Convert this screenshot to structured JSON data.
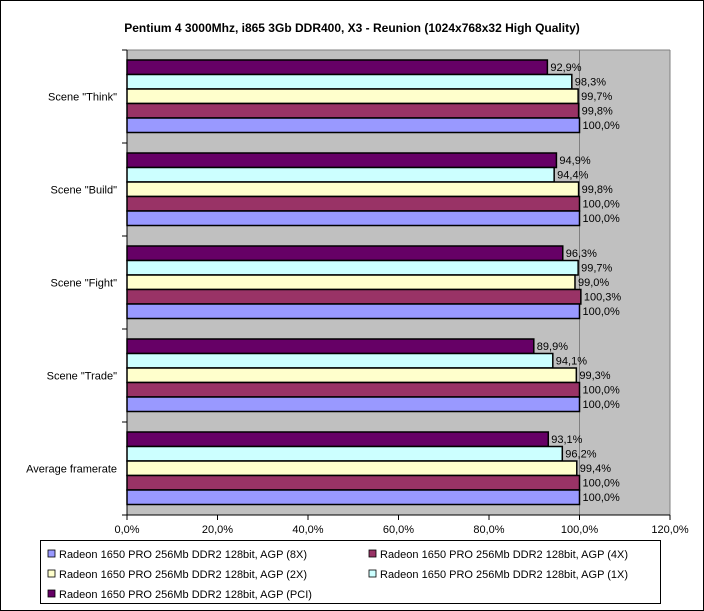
{
  "chart_data": {
    "type": "bar",
    "orientation": "horizontal",
    "title": "Pentium 4 3000Mhz, i865 3Gb DDR400, X3 - Reunion (1024x768x32 High Quality)",
    "categories": [
      "Scene \"Think\"",
      "Scene \"Build\"",
      "Scene \"Fight\"",
      "Scene \"Trade\"",
      "Average framerate"
    ],
    "xlim": [
      0,
      120
    ],
    "x_ticks": [
      "0,0%",
      "20,0%",
      "40,0%",
      "60,0%",
      "80,0%",
      "100,0%",
      "120,0%"
    ],
    "grid": "vertical major at 100%",
    "legend_placement": "bottom",
    "plot_background": "#C0C0C0",
    "series": [
      {
        "name": "Radeon 1650 PRO 256Mb DDR2 128bit, AGP (8X)",
        "color": "#9999FF",
        "values": [
          100.0,
          100.0,
          100.0,
          100.0,
          100.0
        ],
        "labels": [
          "100,0%",
          "100,0%",
          "100,0%",
          "100,0%",
          "100,0%"
        ]
      },
      {
        "name": "Radeon 1650 PRO 256Mb DDR2 128bit, AGP (4X)",
        "color": "#993366",
        "values": [
          99.8,
          100.0,
          100.3,
          100.0,
          100.0
        ],
        "labels": [
          "99,8%",
          "100,0%",
          "100,3%",
          "100,0%",
          "100,0%"
        ]
      },
      {
        "name": "Radeon 1650 PRO 256Mb DDR2 128bit, AGP (2X)",
        "color": "#FFFFCC",
        "values": [
          99.7,
          99.8,
          99.0,
          99.3,
          99.4
        ],
        "labels": [
          "99,7%",
          "99,8%",
          "99,0%",
          "99,3%",
          "99,4%"
        ]
      },
      {
        "name": "Radeon 1650 PRO 256Mb DDR2 128bit, AGP (1X)",
        "color": "#CCFFFF",
        "values": [
          98.3,
          94.4,
          99.7,
          94.1,
          96.2
        ],
        "labels": [
          "98,3%",
          "94,4%",
          "99,7%",
          "94,1%",
          "96,2%"
        ]
      },
      {
        "name": "Radeon 1650 PRO 256Mb DDR2 128bit, AGP (PCI)",
        "color": "#660066",
        "values": [
          92.9,
          94.9,
          96.3,
          89.9,
          93.1
        ],
        "labels": [
          "92,9%",
          "94,9%",
          "96,3%",
          "89,9%",
          "93,1%"
        ]
      }
    ]
  }
}
